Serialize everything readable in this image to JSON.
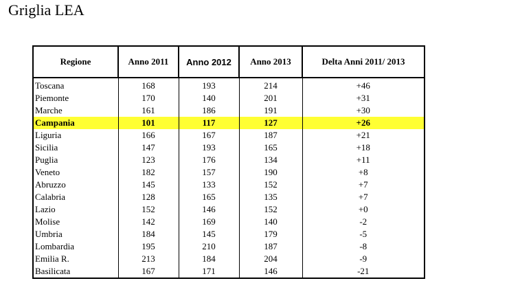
{
  "page": {
    "title": "Griglia LEA"
  },
  "table": {
    "headers": [
      "Regione",
      "Anno 2011",
      "Anno 2012",
      "Anno 2013",
      "Delta Anni 2011/ 2013"
    ],
    "highlight_color": "#ffff33",
    "rows": [
      [
        "Toscana",
        "168",
        "193",
        "214",
        "+46"
      ],
      [
        "Piemonte",
        "170",
        "140",
        "201",
        "+31"
      ],
      [
        "Marche",
        "161",
        "186",
        "191",
        "+30"
      ],
      [
        "Campania",
        "101",
        "117",
        "127",
        "+26"
      ],
      [
        "Liguria",
        "166",
        "167",
        "187",
        "+21"
      ],
      [
        "Sicilia",
        "147",
        "193",
        "165",
        "+18"
      ],
      [
        "Puglia",
        "123",
        "176",
        "134",
        "+11"
      ],
      [
        "Veneto",
        "182",
        "157",
        "190",
        "+8"
      ],
      [
        "Abruzzo",
        "145",
        "133",
        "152",
        "+7"
      ],
      [
        "Calabria",
        "128",
        "165",
        "135",
        "+7"
      ],
      [
        "Lazio",
        "152",
        "146",
        "152",
        "+0"
      ],
      [
        "Molise",
        "142",
        "169",
        "140",
        "-2"
      ],
      [
        "Umbria",
        "184",
        "145",
        "179",
        "-5"
      ],
      [
        "Lombardia",
        "195",
        "210",
        "187",
        "-8"
      ],
      [
        "Emilia R.",
        "213",
        "184",
        "204",
        "-9"
      ],
      [
        "Basilicata",
        "167",
        "171",
        "146",
        "-21"
      ]
    ],
    "highlighted_row": 3
  }
}
